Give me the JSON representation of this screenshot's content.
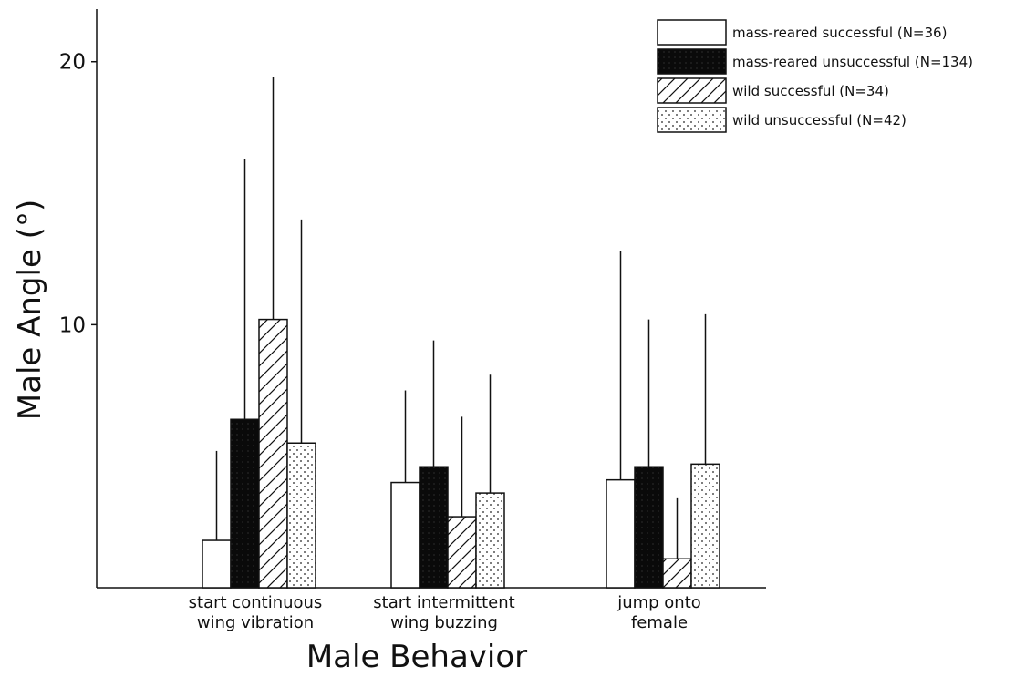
{
  "chart_data": {
    "type": "bar",
    "title": "",
    "xlabel": "Male Behavior",
    "ylabel": "Male Angle (°)",
    "ylim": [
      0,
      22
    ],
    "yticks": [
      10,
      20
    ],
    "ytick_labels": [
      "10",
      "20"
    ],
    "categories": [
      [
        "start continuous",
        "wing vibration"
      ],
      [
        "start intermittent",
        "wing buzzing"
      ],
      [
        "jump onto",
        "female"
      ]
    ],
    "legend_position": "top-right",
    "series": [
      {
        "name": "mass-reared successful (N=36)",
        "pattern": "white",
        "values": [
          1.8,
          4.0,
          4.1
        ],
        "errors": [
          5.2,
          7.5,
          12.8
        ]
      },
      {
        "name": "mass-reared unsuccessful (N=134)",
        "pattern": "black",
        "values": [
          6.4,
          4.6,
          4.6
        ],
        "errors": [
          16.3,
          9.4,
          10.2
        ]
      },
      {
        "name": "wild successful (N=34)",
        "pattern": "hatched",
        "values": [
          10.2,
          2.7,
          1.1
        ],
        "errors": [
          19.4,
          6.5,
          3.4
        ]
      },
      {
        "name": "wild unsuccessful (N=42)",
        "pattern": "dotted",
        "values": [
          5.5,
          3.6,
          4.7
        ],
        "errors": [
          14.0,
          8.1,
          10.4
        ]
      }
    ]
  }
}
